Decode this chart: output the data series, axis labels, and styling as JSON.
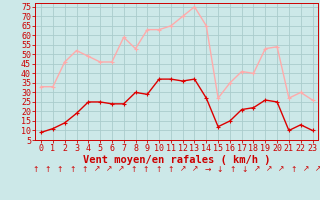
{
  "hours": [
    0,
    1,
    2,
    3,
    4,
    5,
    6,
    7,
    8,
    9,
    10,
    11,
    12,
    13,
    14,
    15,
    16,
    17,
    18,
    19,
    20,
    21,
    22,
    23
  ],
  "wind_avg": [
    9,
    11,
    14,
    19,
    25,
    25,
    24,
    24,
    30,
    29,
    37,
    37,
    36,
    37,
    27,
    12,
    15,
    21,
    22,
    26,
    25,
    10,
    13,
    10
  ],
  "wind_gust": [
    33,
    33,
    46,
    52,
    49,
    46,
    46,
    59,
    53,
    63,
    63,
    65,
    70,
    75,
    65,
    27,
    35,
    41,
    40,
    53,
    54,
    27,
    30,
    26
  ],
  "avg_color": "#dd0000",
  "gust_color": "#ffaaaa",
  "bg_color": "#cce8e8",
  "grid_color": "#aacccc",
  "label_color": "#cc0000",
  "spine_color": "#cc0000",
  "ylim_min": 5,
  "ylim_max": 77,
  "yticks": [
    5,
    10,
    15,
    20,
    25,
    30,
    35,
    40,
    45,
    50,
    55,
    60,
    65,
    70,
    75
  ],
  "xlabel": "Vent moyen/en rafales ( km/h )",
  "xlabel_fontsize": 7.5,
  "tick_fontsize": 6,
  "line_width": 1.0,
  "marker_size": 3.0,
  "arrows": [
    "↑",
    "↑",
    "↑",
    "↑",
    "↑",
    "↗",
    "↗",
    "↗",
    "↑",
    "↑",
    "↑",
    "↑",
    "↗",
    "↗",
    "→",
    "↓",
    "↑",
    "↓",
    "↗",
    "↗",
    "↗",
    "↑",
    "↗",
    "↗"
  ]
}
